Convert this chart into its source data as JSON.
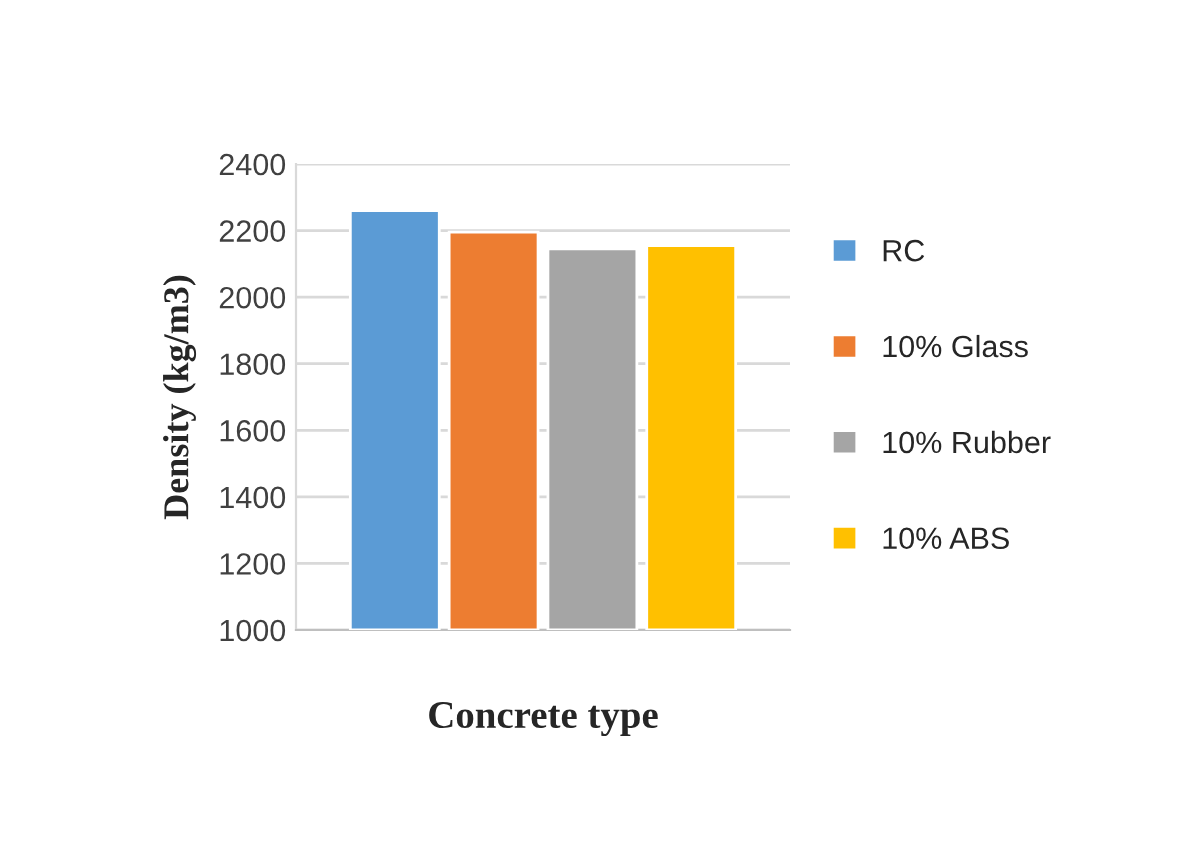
{
  "chart_data": {
    "type": "bar",
    "xlabel": "Concrete type",
    "ylabel": "Density (kg/m3)",
    "categories": [
      null
    ],
    "series": [
      {
        "name": "RC",
        "color": "#5b9bd5",
        "values": [
          2260
        ]
      },
      {
        "name": "10% Glass",
        "color": "#ed7d31",
        "values": [
          2195
        ]
      },
      {
        "name": "10% Rubber",
        "color": "#a5a5a5",
        "values": [
          2145
        ]
      },
      {
        "name": "10% ABS",
        "color": "#ffc000",
        "values": [
          2155
        ]
      }
    ],
    "ylim": [
      1000,
      2400
    ],
    "yticks": [
      1000,
      1200,
      1400,
      1600,
      1800,
      2000,
      2200,
      2400
    ],
    "grid": "y",
    "legend": "right"
  }
}
